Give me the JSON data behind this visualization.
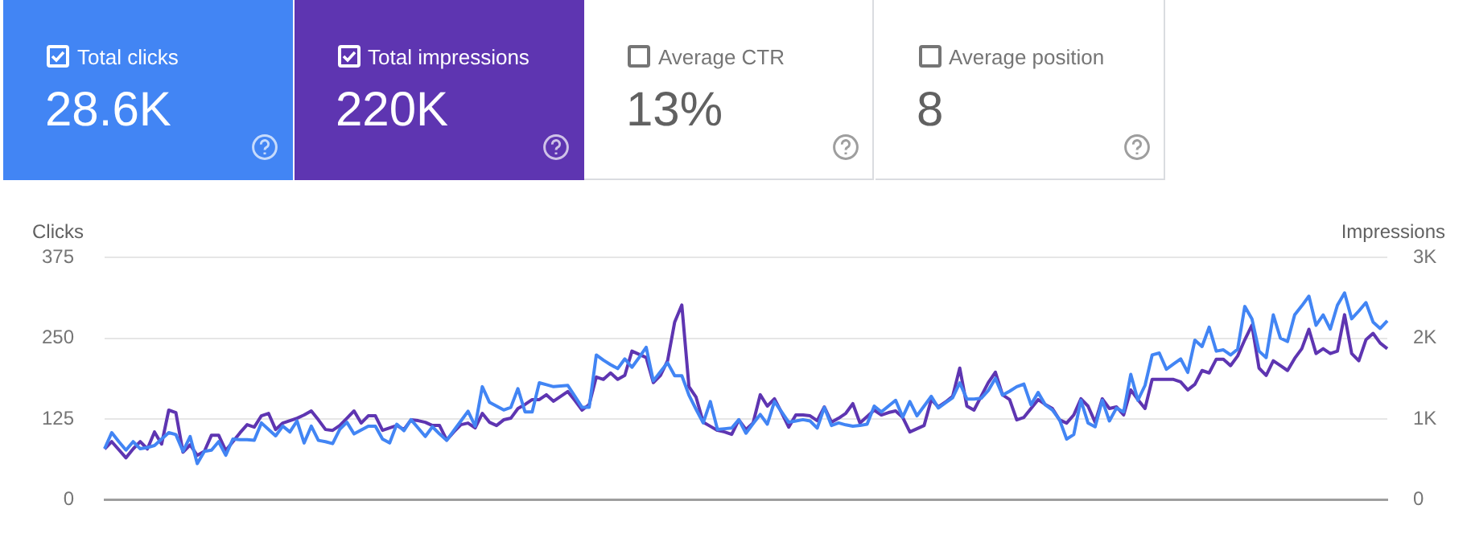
{
  "chart_data": [
    {
      "type": "other",
      "categories": [
        "Total clicks",
        "Total impressions",
        "Average CTR",
        "Average position"
      ],
      "value_labels": [
        "28.6K",
        "220K",
        "13%",
        "8"
      ],
      "colors": [
        "#4285f4",
        "#5e35b1",
        null,
        null
      ]
    },
    {
      "type": "line",
      "ylabel": "Clicks",
      "y2label": "Impressions",
      "categories": [
        null,
        null,
        null,
        null,
        null,
        null,
        null,
        null,
        null,
        null,
        null,
        null,
        null,
        null,
        null,
        null,
        null,
        null,
        null,
        null,
        null,
        null,
        null,
        null,
        null,
        null,
        null,
        null,
        null,
        null,
        null,
        null,
        null,
        null,
        null,
        null,
        null,
        null,
        null,
        null,
        null,
        null,
        null,
        null,
        null,
        null,
        null,
        null,
        null,
        null,
        null,
        null,
        null,
        null,
        null,
        null,
        null,
        null,
        null,
        null,
        null,
        null,
        null,
        null,
        null,
        null,
        null,
        null,
        null,
        null,
        null,
        null,
        null,
        null,
        null,
        null,
        null,
        null,
        null,
        null,
        null,
        null,
        null,
        null,
        null,
        null,
        null,
        null,
        null,
        null,
        null,
        null,
        null,
        null,
        null,
        null,
        null,
        null,
        null,
        null,
        null,
        null,
        null,
        null,
        null,
        null,
        null,
        null,
        null,
        null,
        null,
        null,
        null,
        null,
        null,
        null,
        null,
        null,
        null,
        null,
        null,
        null,
        null,
        null,
        null,
        null,
        null,
        null,
        null,
        null,
        null,
        null,
        null,
        null,
        null,
        null,
        null,
        null,
        null,
        null,
        null,
        null,
        null,
        null,
        null,
        null,
        null,
        null,
        null,
        null,
        null,
        null,
        null,
        null,
        null,
        null,
        null,
        null,
        null,
        null,
        null,
        null,
        null,
        null,
        null,
        null,
        null,
        null,
        null,
        null,
        null,
        null,
        null,
        null,
        null,
        null,
        null,
        null,
        null,
        null,
        null
      ],
      "ylim": [
        0,
        375
      ],
      "yticks": [
        0,
        125,
        250,
        375
      ],
      "y2lim": [
        0,
        3000
      ],
      "y2ticks": [
        0,
        {
          "value": 1000,
          "label": "1K"
        },
        {
          "value": 2000,
          "label": "2K"
        },
        {
          "value": 3000,
          "label": "3K"
        }
      ],
      "grid": "y",
      "marker": "none",
      "series": [
        {
          "color": "#4285f4",
          "axis": "y",
          "values": [
            79,
            104,
            90,
            77,
            90,
            79,
            81,
            84,
            94,
            104,
            101,
            75,
            98,
            56,
            75,
            77,
            90,
            69,
            94,
            93,
            93,
            92,
            119,
            109,
            99,
            114,
            105,
            122,
            88,
            114,
            92,
            90,
            87,
            109,
            120,
            102,
            108,
            114,
            114,
            94,
            88,
            117,
            107,
            124,
            111,
            98,
            113,
            102,
            92,
            107,
            122,
            137,
            114,
            175,
            151,
            145,
            139,
            143,
            172,
            136,
            136,
            181,
            178,
            175,
            176,
            177,
            160,
            143,
            143,
            224,
            216,
            209,
            203,
            218,
            205,
            220,
            236,
            184,
            198,
            212,
            192,
            192,
            162,
            140,
            119,
            152,
            109,
            110,
            111,
            124,
            103,
            118,
            132,
            117,
            152,
            136,
            120,
            122,
            124,
            122,
            111,
            143,
            115,
            119,
            116,
            114,
            115,
            117,
            145,
            136,
            145,
            154,
            128,
            152,
            130,
            145,
            160,
            142,
            150,
            158,
            181,
            156,
            156,
            157,
            169,
            188,
            162,
            168,
            175,
            179,
            147,
            166,
            147,
            139,
            124,
            94,
            101,
            154,
            119,
            113,
            154,
            122,
            142,
            136,
            194,
            154,
            177,
            224,
            227,
            202,
            210,
            218,
            197,
            247,
            237,
            267,
            230,
            232,
            224,
            233,
            299,
            280,
            230,
            220,
            286,
            250,
            245,
            286,
            300,
            315,
            270,
            286,
            264,
            301,
            320,
            280,
            292,
            305,
            275,
            265,
            277
          ]
        },
        {
          "color": "#5e35b1",
          "axis": "y2",
          "values": [
            630,
            720,
            620,
            520,
            630,
            720,
            630,
            840,
            690,
            1110,
            1080,
            590,
            680,
            550,
            600,
            800,
            800,
            610,
            720,
            830,
            930,
            900,
            1040,
            1070,
            870,
            950,
            980,
            1010,
            1050,
            1100,
            990,
            870,
            860,
            920,
            1010,
            1100,
            950,
            1040,
            1040,
            860,
            890,
            920,
            870,
            990,
            980,
            960,
            920,
            920,
            740,
            840,
            930,
            950,
            890,
            1070,
            960,
            920,
            990,
            1010,
            1130,
            1180,
            1240,
            1240,
            1300,
            1220,
            1280,
            1340,
            1230,
            1110,
            1180,
            1520,
            1490,
            1570,
            1490,
            1540,
            1840,
            1800,
            1760,
            1450,
            1540,
            1720,
            2200,
            2410,
            1400,
            1270,
            960,
            910,
            860,
            840,
            810,
            990,
            870,
            950,
            1300,
            1160,
            1250,
            1080,
            900,
            1050,
            1050,
            1040,
            980,
            1150,
            960,
            1010,
            1070,
            1190,
            950,
            1030,
            1110,
            1050,
            1080,
            1100,
            1020,
            840,
            880,
            920,
            1240,
            1150,
            1210,
            1280,
            1630,
            1160,
            1110,
            1280,
            1450,
            1580,
            1300,
            1240,
            990,
            1020,
            1130,
            1240,
            1180,
            1130,
            990,
            950,
            1050,
            1250,
            1160,
            960,
            1250,
            1130,
            1150,
            1050,
            1360,
            1240,
            1130,
            1490,
            1490,
            1490,
            1490,
            1460,
            1360,
            1430,
            1600,
            1570,
            1740,
            1740,
            1660,
            1780,
            1980,
            2160,
            1630,
            1540,
            1720,
            1660,
            1600,
            1750,
            1870,
            2110,
            1810,
            1870,
            1810,
            1840,
            2290,
            1810,
            1720,
            1980,
            2060,
            1940,
            1870
          ]
        }
      ]
    }
  ]
}
